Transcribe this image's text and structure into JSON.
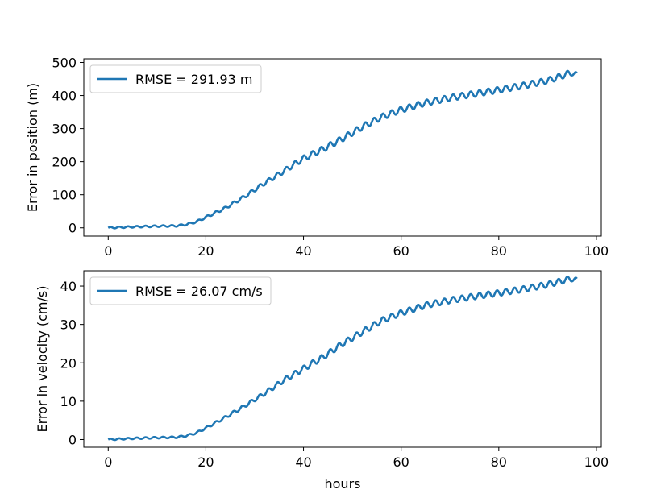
{
  "chart_data": [
    {
      "type": "line",
      "title": "",
      "xlabel": "",
      "ylabel": "Error in position (m)",
      "xlim": [
        -5,
        101
      ],
      "ylim": [
        -25,
        511
      ],
      "xticks": [
        0,
        20,
        40,
        60,
        80,
        100
      ],
      "yticks": [
        0,
        100,
        200,
        300,
        400,
        500
      ],
      "legend": {
        "label": "RMSE = 291.93 m",
        "placement": "upper-left"
      },
      "color": "#1f77b4",
      "series": [
        {
          "name": "RMSE = 291.93 m",
          "trend": [
            [
              0,
              0
            ],
            [
              5,
              3
            ],
            [
              10,
              5
            ],
            [
              14,
              6
            ],
            [
              16,
              10
            ],
            [
              18,
              18
            ],
            [
              20,
              32
            ],
            [
              24,
              60
            ],
            [
              28,
              95
            ],
            [
              32,
              135
            ],
            [
              36,
              172
            ],
            [
              40,
              210
            ],
            [
              44,
              238
            ],
            [
              48,
              270
            ],
            [
              52,
              305
            ],
            [
              56,
              335
            ],
            [
              60,
              357
            ],
            [
              65,
              378
            ],
            [
              70,
              393
            ],
            [
              75,
              405
            ],
            [
              80,
              417
            ],
            [
              85,
              430
            ],
            [
              90,
              445
            ],
            [
              95,
              470
            ],
            [
              96,
              460
            ]
          ],
          "oscillation": {
            "period_hours": 1.8,
            "amplitude_m": 9
          }
        }
      ]
    },
    {
      "type": "line",
      "title": "",
      "xlabel": "hours",
      "ylabel": "Error in velocity (cm/s)",
      "xlim": [
        -5,
        101
      ],
      "ylim": [
        -2,
        44
      ],
      "xticks": [
        0,
        20,
        40,
        60,
        80,
        100
      ],
      "yticks": [
        0,
        10,
        20,
        30,
        40
      ],
      "legend": {
        "label": "RMSE = 26.07 cm/s",
        "placement": "upper-left"
      },
      "color": "#1f77b4",
      "series": [
        {
          "name": "RMSE = 26.07 cm/s",
          "trend": [
            [
              0,
              0
            ],
            [
              5,
              0.3
            ],
            [
              10,
              0.5
            ],
            [
              14,
              0.6
            ],
            [
              16,
              1
            ],
            [
              18,
              1.7
            ],
            [
              20,
              3
            ],
            [
              24,
              5.8
            ],
            [
              28,
              8.8
            ],
            [
              32,
              12
            ],
            [
              36,
              15.5
            ],
            [
              40,
              18.5
            ],
            [
              44,
              21.5
            ],
            [
              48,
              25
            ],
            [
              52,
              28
            ],
            [
              56,
              31
            ],
            [
              60,
              33
            ],
            [
              65,
              35
            ],
            [
              70,
              36.3
            ],
            [
              75,
              37.3
            ],
            [
              80,
              38.2
            ],
            [
              85,
              39.2
            ],
            [
              90,
              40.4
            ],
            [
              95,
              42
            ],
            [
              96,
              41.3
            ]
          ],
          "oscillation": {
            "period_hours": 1.8,
            "amplitude_cms": 0.75
          }
        }
      ]
    }
  ]
}
